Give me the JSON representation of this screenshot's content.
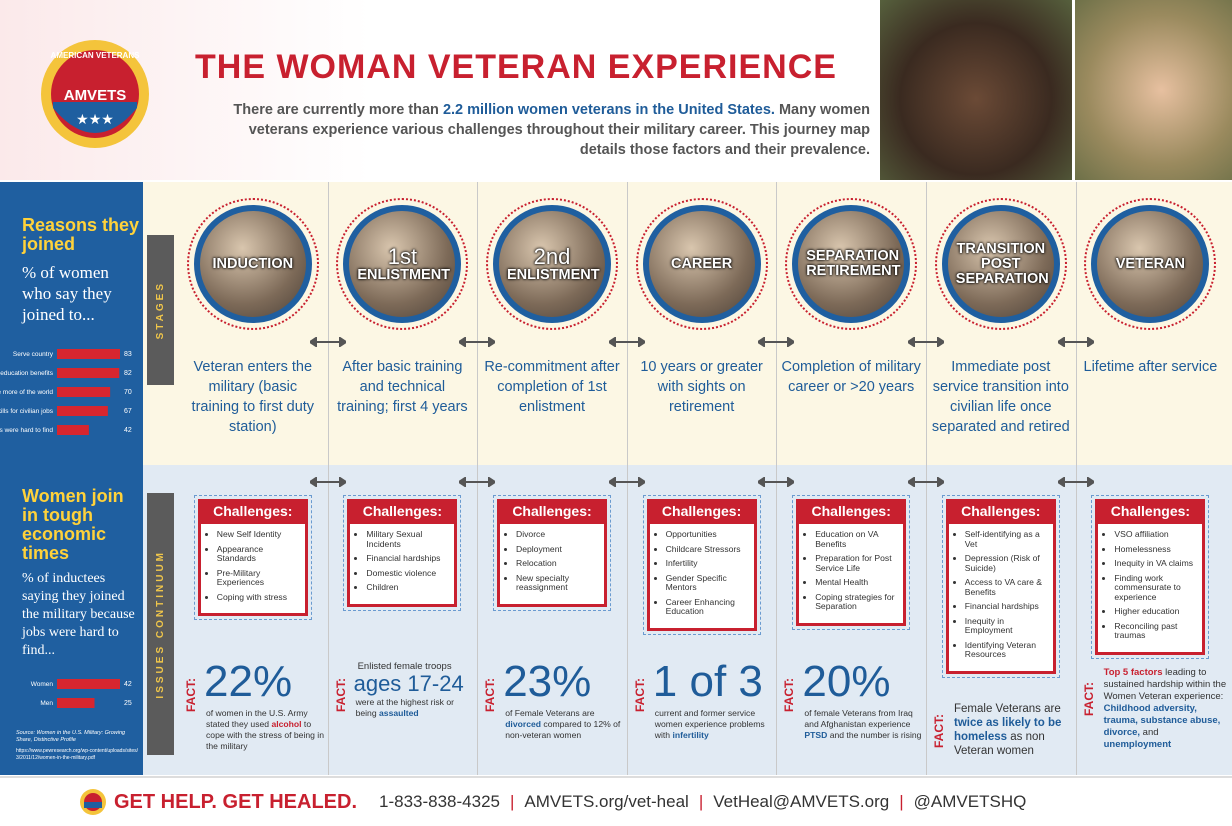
{
  "header": {
    "logo_ring": "AMERICAN VETERANS",
    "logo_name": "AMVETS",
    "title": "THE WOMAN VETERAN EXPERIENCE",
    "intro": [
      {
        "text": "There are currently more than "
      },
      {
        "text": "2.2 million women veterans in the United States.",
        "style": "blue"
      },
      {
        "text": " Many women veterans experience various challenges throughout their military career. This journey map details those factors and their prevalence."
      }
    ]
  },
  "sidebar": {
    "reasons": {
      "heading": "Reasons they joined",
      "subheading": "% of women who say they joined to...",
      "chart": {
        "type": "bar",
        "categories": [
          "Serve country",
          "Receive education benefits",
          "See more of the world",
          "Learn skills for civilian jobs",
          "Because jobs were hard to find"
        ],
        "values": [
          83,
          82,
          70,
          67,
          42
        ],
        "color": "#d7262f"
      }
    },
    "economic": {
      "heading": "Women join in tough economic times",
      "subheading": "% of inductees saying they joined the military because jobs were hard to find...",
      "chart": {
        "type": "bar",
        "categories": [
          "Women",
          "Men"
        ],
        "values": [
          42,
          25
        ],
        "color": "#d7262f"
      }
    },
    "source": "Source: Women in the U.S. Military: Growing Share, Distinctive Profile",
    "url": "https://www.pewresearch.org/wp-content/uploads/sites/3/2011/12/women-in-the-military.pdf"
  },
  "side_labels": {
    "stages": "STAGES",
    "issues": "ISSUES CONTINUUM"
  },
  "stages": [
    {
      "name": "INDUCTION",
      "description": "Veteran enters the military (basic training to first duty station)",
      "challenges_heading": "Challenges:",
      "challenges": [
        "New Self Identity",
        "Appearance Standards",
        "Pre-Military Experiences",
        "Coping with stress"
      ],
      "fact": {
        "label": "FACT:",
        "big": "22%",
        "text": [
          {
            "text": "of women in the U.S. Army stated they used "
          },
          {
            "text": "alcohol",
            "style": "red"
          },
          {
            "text": " to cope with the stress of being in the military"
          }
        ]
      }
    },
    {
      "ordinal": "1st",
      "name": "ENLISTMENT",
      "description": "After basic training and technical training; first 4 years",
      "challenges_heading": "Challenges:",
      "challenges": [
        "Military Sexual Incidents",
        "Financial hardships",
        "Domestic violence",
        "Children"
      ],
      "fact": {
        "label": "FACT:",
        "lead": "Enlisted female troops",
        "big": "ages 17-24",
        "text": [
          {
            "text": "were at the highest risk or being "
          },
          {
            "text": "assaulted",
            "style": "blue"
          }
        ]
      }
    },
    {
      "ordinal": "2nd",
      "name": "ENLISTMENT",
      "description": "Re-commitment after completion of 1st enlistment",
      "challenges_heading": "Challenges:",
      "challenges": [
        "Divorce",
        "Deployment",
        "Relocation",
        "New specialty reassignment"
      ],
      "fact": {
        "label": "FACT:",
        "big": "23%",
        "text": [
          {
            "text": "of Female Veterans are "
          },
          {
            "text": "divorced",
            "style": "blue"
          },
          {
            "text": " compared to 12% of non-veteran women"
          }
        ]
      }
    },
    {
      "name": "CAREER",
      "description": "10 years or greater with sights on retirement",
      "challenges_heading": "Challenges:",
      "challenges": [
        "Opportunities",
        "Childcare Stressors",
        "Infertility",
        "Gender Specific Mentors",
        "Career Enhancing Education"
      ],
      "fact": {
        "label": "FACT:",
        "big": "1 of 3",
        "text": [
          {
            "text": "current and former service women experience problems with "
          },
          {
            "text": "infertility",
            "style": "blue"
          }
        ]
      }
    },
    {
      "name": "SEPARATION RETIREMENT",
      "description": "Completion of military career or >20 years",
      "challenges_heading": "Challenges:",
      "challenges": [
        "Education on VA Benefits",
        "Preparation for Post Service Life",
        "Mental Health",
        "Coping strategies for Separation"
      ],
      "fact": {
        "label": "FACT:",
        "big": "20%",
        "text": [
          {
            "text": "of female Veterans from Iraq and Afghanistan experience "
          },
          {
            "text": "PTSD",
            "style": "blue"
          },
          {
            "text": " and the number is rising"
          }
        ]
      }
    },
    {
      "name": "TRANSITION POST SEPARATION",
      "description": "Immediate post service transition into civilian life once separated and retired",
      "challenges_heading": "Challenges:",
      "challenges": [
        "Self-identifying as a Vet",
        "Depression (Risk of Suicide)",
        "Access to VA care & Benefits",
        "Financial hardships",
        "Inequity in Employment",
        "Identifying Veteran Resources"
      ],
      "fact": {
        "label": "FACT:",
        "text": [
          {
            "text": "Female Veterans are "
          },
          {
            "text": "twice as likely to be homeless",
            "style": "blue"
          },
          {
            "text": " as non Veteran women"
          }
        ]
      }
    },
    {
      "name": "VETERAN",
      "description": "Lifetime after service",
      "challenges_heading": "Challenges:",
      "challenges": [
        "VSO affiliation",
        "Homelessness",
        "Inequity in VA claims",
        "Finding work commensurate to experience",
        "Higher education",
        "Reconciling past traumas"
      ],
      "fact": {
        "label": "FACT:",
        "text": [
          {
            "text": "Top 5 factors",
            "style": "red"
          },
          {
            "text": " leading to sustained hardship within the Women Veteran experience: "
          },
          {
            "text": "Childhood adversity, trauma, substance abuse, divorce,",
            "style": "blue"
          },
          {
            "text": " and "
          },
          {
            "text": "unemployment",
            "style": "blue"
          }
        ]
      }
    }
  ],
  "footer": {
    "slogan": "GET HELP. GET HEALED.",
    "phone": "1-833-838-4325",
    "web": "AMVETS.org/vet-heal",
    "email": "VetHeal@AMVETS.org",
    "social": "@AMVETSHQ"
  }
}
